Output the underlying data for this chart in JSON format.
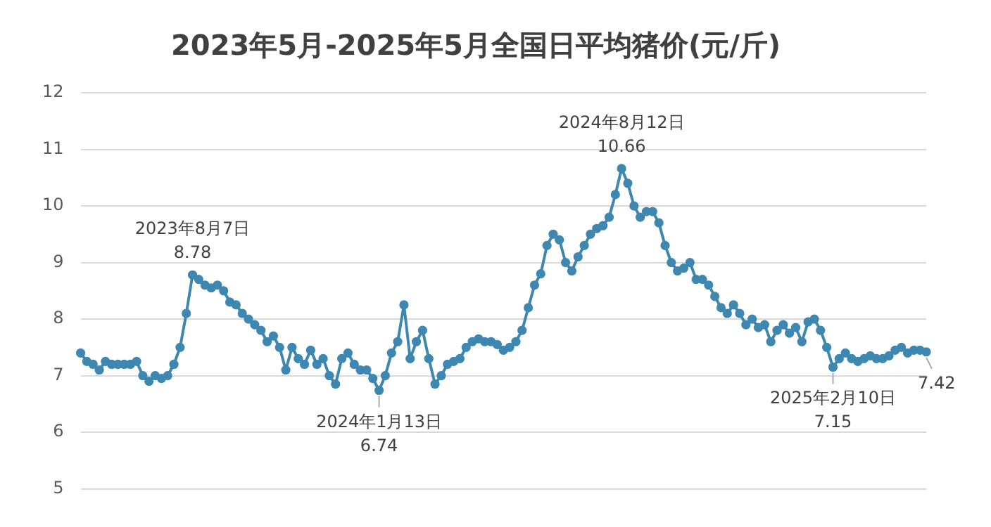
{
  "chart_data": {
    "type": "line",
    "title": "2023年5月-2025年5月全国日平均猪价(元/斤)",
    "categories": [
      null,
      null,
      null,
      null,
      null,
      null,
      null,
      null,
      null,
      null,
      null,
      null,
      null,
      null,
      null,
      null,
      null,
      null,
      null,
      null,
      null,
      null,
      null,
      null,
      null,
      null,
      null,
      null,
      null,
      null,
      null,
      null,
      null,
      null,
      null,
      null,
      null,
      null,
      null,
      null,
      null,
      null,
      null,
      null,
      null,
      null,
      null,
      null,
      null,
      null,
      null,
      null,
      null,
      null,
      null,
      null,
      null,
      null,
      null,
      null,
      null,
      null,
      null,
      null,
      null,
      null,
      null,
      null,
      null,
      null,
      null,
      null,
      null,
      null,
      null,
      null,
      null,
      null,
      null,
      null,
      null,
      null,
      null,
      null,
      null,
      null,
      null,
      null,
      null,
      null,
      null,
      null,
      null,
      null,
      null,
      null,
      null,
      null,
      null,
      null,
      null,
      null,
      null,
      null,
      null,
      null,
      null,
      null,
      null,
      null,
      null,
      null,
      null,
      null,
      null,
      null,
      null,
      null,
      null,
      null,
      null,
      null,
      null,
      null,
      null,
      null,
      null,
      null,
      null,
      null,
      null,
      null,
      null,
      null,
      null,
      null,
      null
    ],
    "series": [
      {
        "color": "#3e87b0",
        "values": [
          7.4,
          7.25,
          7.2,
          7.1,
          7.25,
          7.2,
          7.2,
          7.2,
          7.2,
          7.25,
          7.0,
          6.9,
          7.0,
          6.95,
          7.0,
          7.2,
          7.5,
          8.1,
          8.78,
          8.7,
          8.6,
          8.55,
          8.6,
          8.5,
          8.3,
          8.25,
          8.1,
          8.0,
          7.9,
          7.8,
          7.6,
          7.7,
          7.5,
          7.1,
          7.5,
          7.3,
          7.2,
          7.45,
          7.2,
          7.3,
          7.0,
          6.85,
          7.3,
          7.4,
          7.2,
          7.1,
          7.1,
          6.95,
          6.74,
          7.0,
          7.4,
          7.6,
          8.25,
          7.3,
          7.6,
          7.8,
          7.3,
          6.85,
          7.0,
          7.2,
          7.25,
          7.3,
          7.5,
          7.6,
          7.65,
          7.6,
          7.6,
          7.55,
          7.45,
          7.5,
          7.6,
          7.8,
          8.2,
          8.6,
          8.8,
          9.3,
          9.5,
          9.4,
          9.0,
          8.85,
          9.1,
          9.3,
          9.5,
          9.6,
          9.65,
          9.8,
          10.2,
          10.66,
          10.4,
          10.0,
          9.8,
          9.9,
          9.9,
          9.7,
          9.3,
          9.0,
          8.85,
          8.9,
          9.0,
          8.7,
          8.7,
          8.6,
          8.4,
          8.2,
          8.1,
          8.25,
          8.1,
          7.9,
          8.0,
          7.85,
          7.9,
          7.6,
          7.8,
          7.9,
          7.75,
          7.85,
          7.6,
          7.95,
          8.0,
          7.8,
          7.5,
          7.15,
          7.3,
          7.4,
          7.3,
          7.25,
          7.3,
          7.35,
          7.3,
          7.3,
          7.35,
          7.45,
          7.5,
          7.4,
          7.45,
          7.45,
          7.42
        ],
        "value_labels": [
          null,
          null,
          null,
          null,
          null,
          null,
          null,
          null,
          null,
          null,
          null,
          null,
          null,
          null,
          null,
          null,
          null,
          null,
          "8.78",
          null,
          null,
          null,
          null,
          null,
          null,
          null,
          null,
          null,
          null,
          null,
          null,
          null,
          null,
          null,
          null,
          null,
          null,
          null,
          null,
          null,
          null,
          null,
          null,
          null,
          null,
          null,
          null,
          null,
          "6.74",
          null,
          null,
          null,
          null,
          null,
          null,
          null,
          null,
          null,
          null,
          null,
          null,
          null,
          null,
          null,
          null,
          null,
          null,
          null,
          null,
          null,
          null,
          null,
          null,
          null,
          null,
          null,
          null,
          null,
          null,
          null,
          null,
          null,
          null,
          null,
          null,
          null,
          null,
          "10.66",
          null,
          null,
          null,
          null,
          null,
          null,
          null,
          null,
          null,
          null,
          null,
          null,
          null,
          null,
          null,
          null,
          null,
          null,
          null,
          null,
          null,
          null,
          null,
          null,
          null,
          null,
          null,
          null,
          null,
          null,
          null,
          null,
          null,
          "7.15",
          null,
          null,
          null,
          null,
          null,
          null,
          null,
          null,
          null,
          null,
          null,
          null,
          null,
          null,
          "7.42"
        ]
      }
    ],
    "annotations": [
      {
        "text": "2023年8月7日",
        "y": 8.78
      },
      {
        "text": "2024年1月13日",
        "y": 6.74
      },
      {
        "text": "2024年8月12日",
        "y": 10.66
      },
      {
        "text": "2025年2月10日",
        "y": 7.15
      }
    ],
    "ylim": [
      5,
      12
    ],
    "yticks": [
      5,
      6,
      7,
      8,
      9,
      10,
      11,
      12
    ],
    "grid": "y",
    "tick_labels": "y",
    "marker": "circle"
  }
}
